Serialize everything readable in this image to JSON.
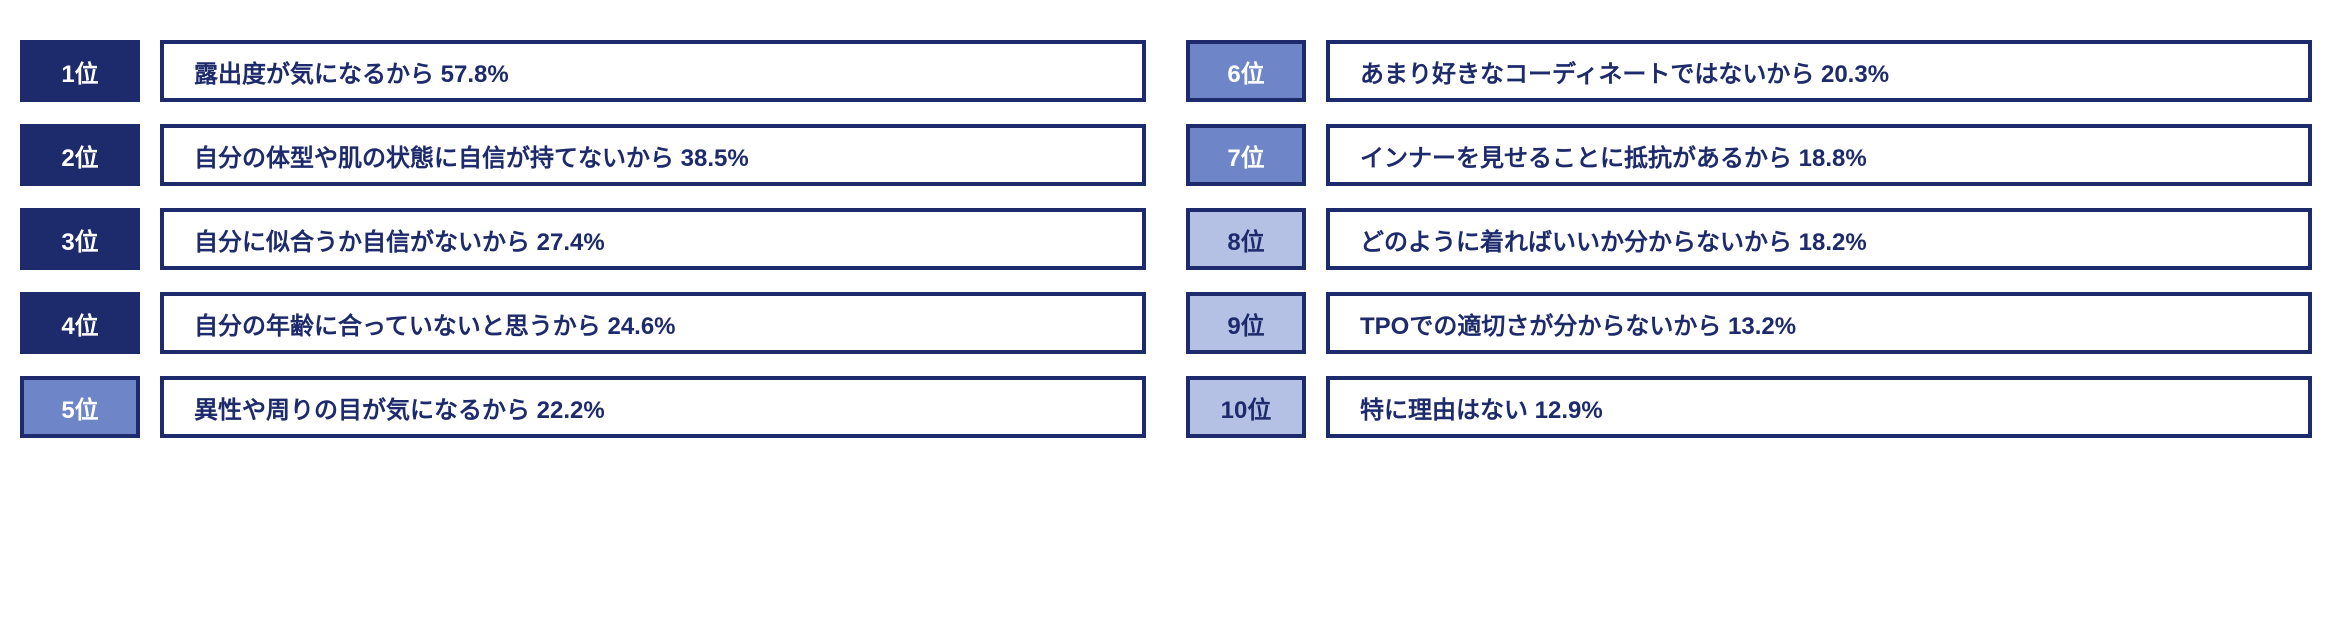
{
  "ranking": {
    "border_color": "#1d2a6b",
    "text_color": "#1d2a6b",
    "badge_colors": {
      "dark": {
        "bg": "#1d2a6b",
        "fg": "#ffffff"
      },
      "mid": {
        "bg": "#6e85c8",
        "fg": "#ffffff"
      },
      "light": {
        "bg": "#b4c1e4",
        "fg": "#1d2a6b"
      }
    },
    "left": [
      {
        "rank": "1位",
        "text": "露出度が気になるから 57.8%",
        "shade": "dark"
      },
      {
        "rank": "2位",
        "text": "自分の体型や肌の状態に自信が持てないから 38.5%",
        "shade": "dark"
      },
      {
        "rank": "3位",
        "text": "自分に似合うか自信がないから 27.4%",
        "shade": "dark"
      },
      {
        "rank": "4位",
        "text": "自分の年齢に合っていないと思うから 24.6%",
        "shade": "dark"
      },
      {
        "rank": "5位",
        "text": "異性や周りの目が気になるから 22.2%",
        "shade": "mid"
      }
    ],
    "right": [
      {
        "rank": "6位",
        "text": "あまり好きなコーディネートではないから 20.3%",
        "shade": "mid"
      },
      {
        "rank": "7位",
        "text": "インナーを見せることに抵抗があるから 18.8%",
        "shade": "mid"
      },
      {
        "rank": "8位",
        "text": "どのように着ればいいか分からないから 18.2%",
        "shade": "light"
      },
      {
        "rank": "9位",
        "text": "TPOでの適切さが分からないから 13.2%",
        "shade": "light"
      },
      {
        "rank": "10位",
        "text": "特に理由はない 12.9%",
        "shade": "light"
      }
    ]
  }
}
